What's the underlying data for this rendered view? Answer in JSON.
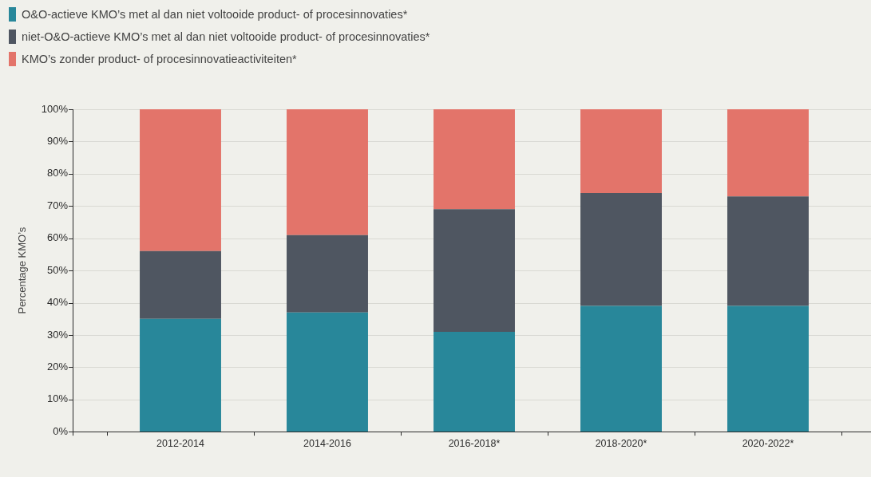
{
  "chart_data": {
    "type": "bar",
    "stacked": true,
    "categories": [
      "2012-2014",
      "2014-2016",
      "2016-2018*",
      "2018-2020*",
      "2020-2022*"
    ],
    "series": [
      {
        "name": "O&O-actieve KMO’s met al dan niet voltooide product- of procesinnovaties*",
        "color": "#28879a",
        "values": [
          35,
          37,
          31,
          39,
          39
        ]
      },
      {
        "name": "niet-O&O-actieve KMO’s met al dan niet voltooide product- of procesinnovaties*",
        "color": "#4f5661",
        "values": [
          21,
          24,
          38,
          35,
          34
        ]
      },
      {
        "name": "KMO’s zonder product- of procesinnovatieactiviteiten*",
        "color": "#e3746a",
        "values": [
          44,
          39,
          31,
          26,
          27
        ]
      }
    ],
    "ylabel": "Percentage KMO’s",
    "ylim": [
      0,
      100
    ],
    "yticks": [
      {
        "value": 0,
        "label": "0%"
      },
      {
        "value": 10,
        "label": "10%"
      },
      {
        "value": 20,
        "label": "20%"
      },
      {
        "value": 30,
        "label": "30%"
      },
      {
        "value": 40,
        "label": "40%"
      },
      {
        "value": 50,
        "label": "50%"
      },
      {
        "value": 60,
        "label": "60%"
      },
      {
        "value": 70,
        "label": "70%"
      },
      {
        "value": 80,
        "label": "80%"
      },
      {
        "value": 90,
        "label": "90%"
      },
      {
        "value": 100,
        "label": "100%"
      }
    ],
    "grid": "y",
    "legend": "top left"
  }
}
